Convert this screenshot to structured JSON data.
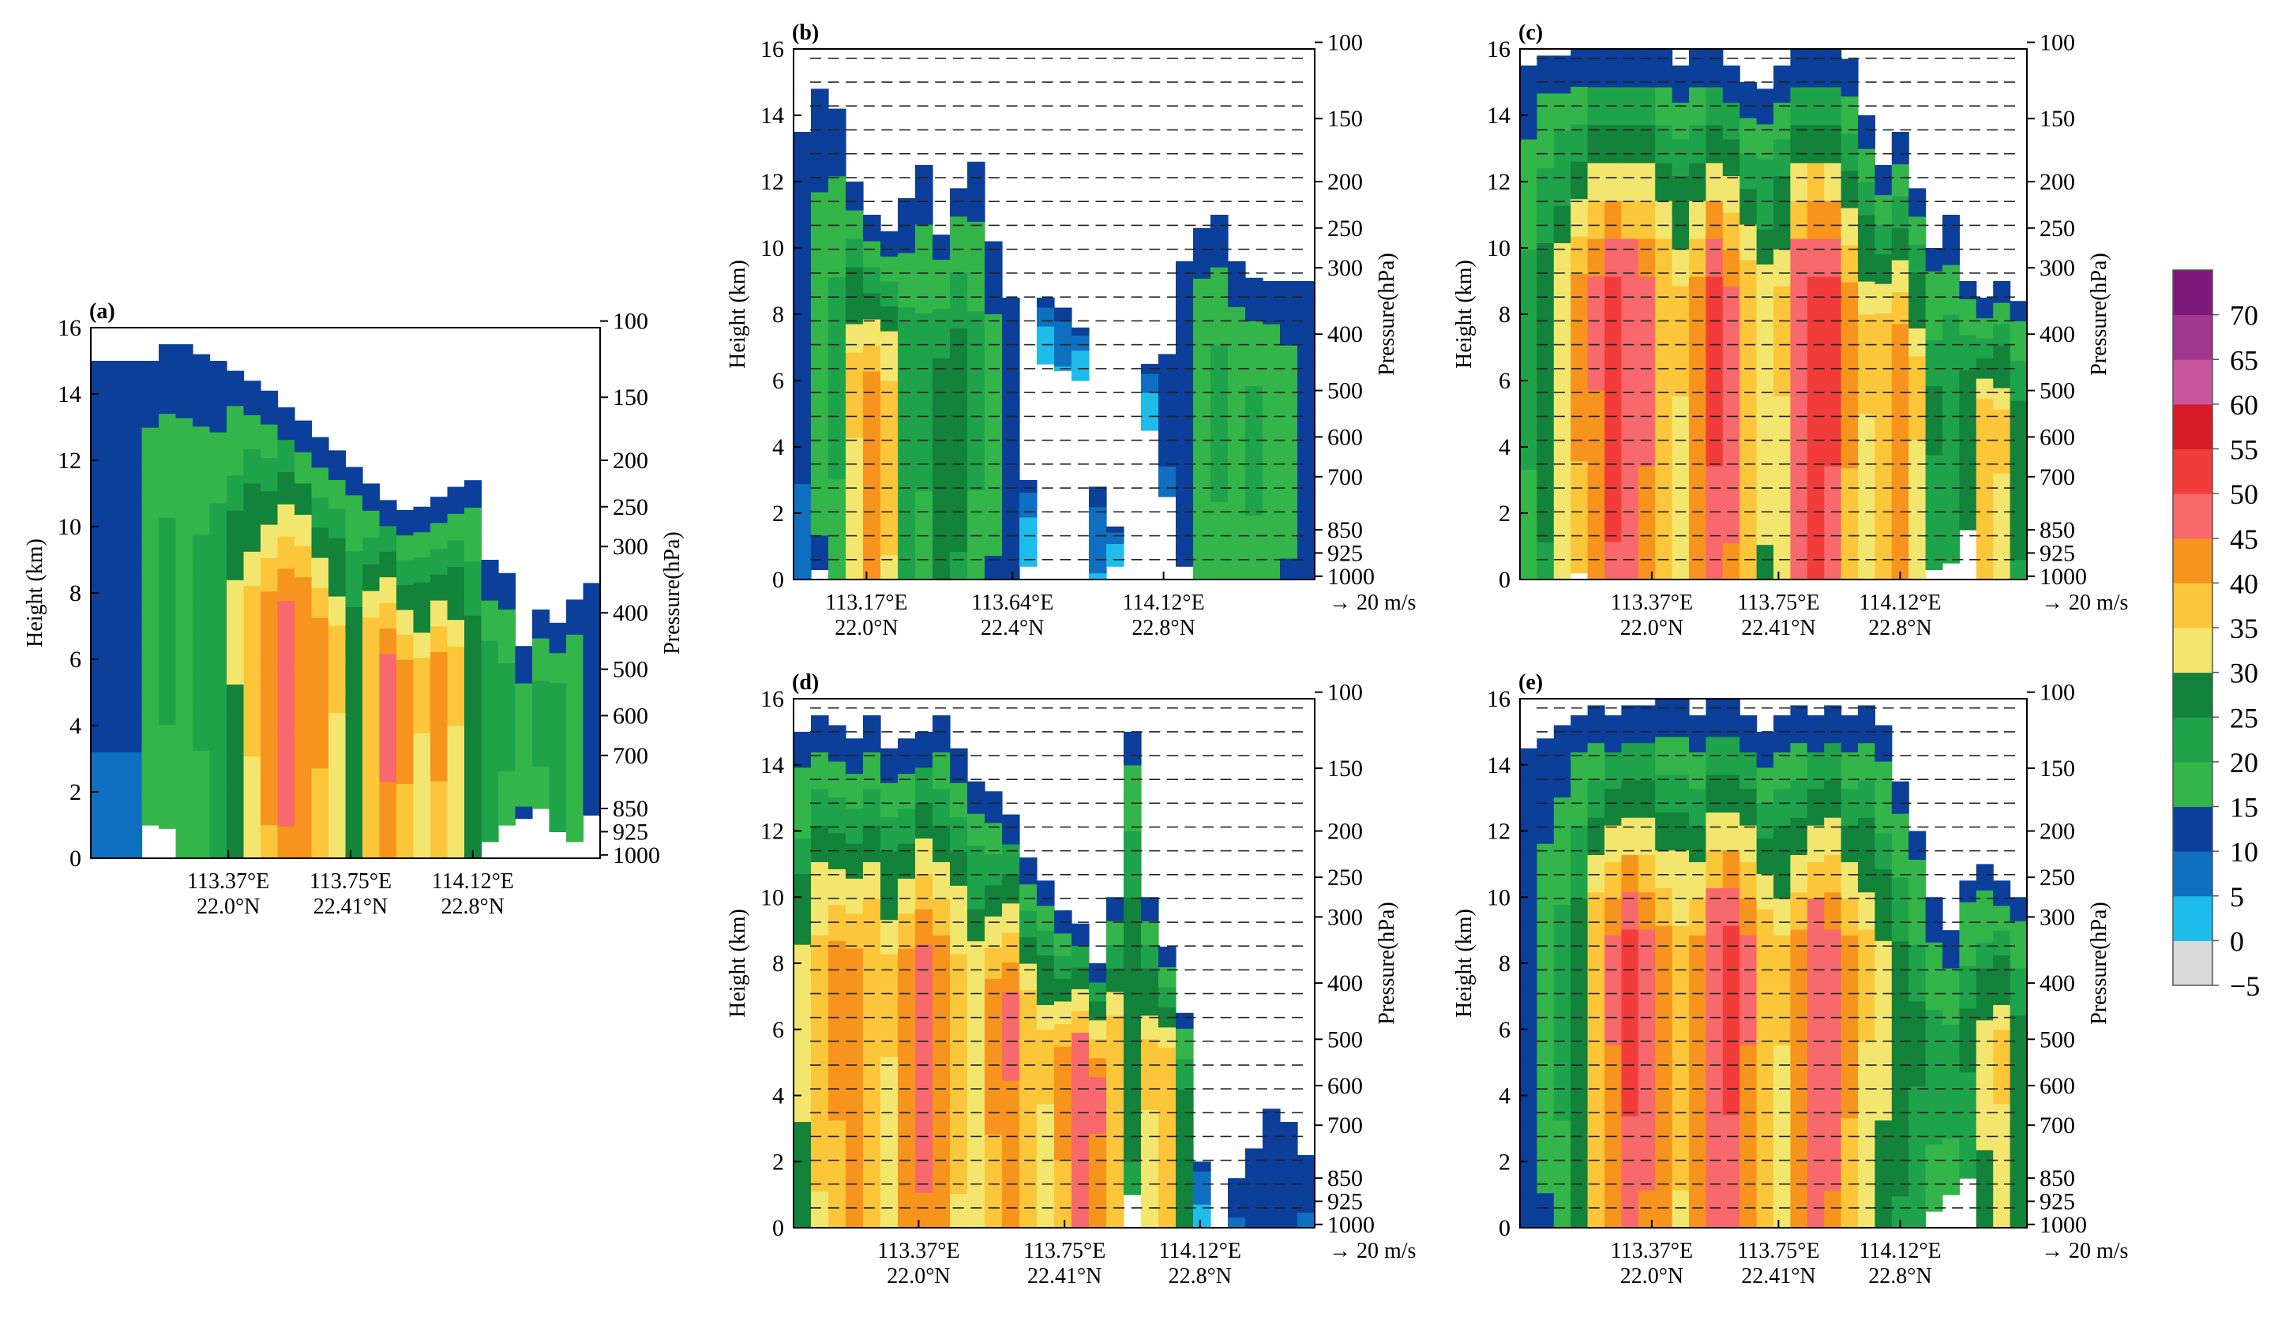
{
  "figure": {
    "description_units": {
      "height_axis": "Height (km)",
      "pressure_axis": "Pressure(hPa)"
    },
    "colorbar": {
      "ticks": [
        "70",
        "65",
        "60",
        "55",
        "50",
        "45",
        "40",
        "35",
        "30",
        "25",
        "20",
        "15",
        "10",
        "5",
        "0",
        "−5"
      ],
      "levels": [
        -5,
        0,
        5,
        10,
        15,
        20,
        25,
        30,
        35,
        40,
        45,
        50,
        55,
        60,
        65,
        70,
        75
      ],
      "colors": [
        "#d9d9d9",
        "#1ebcea",
        "#0f6fc0",
        "#0b3f99",
        "#33b54a",
        "#1fa34a",
        "#13823a",
        "#f3e66e",
        "#fcc63a",
        "#f7941d",
        "#f7696c",
        "#f23c3a",
        "#d71c28",
        "#c9569c",
        "#a1368f",
        "#7d1978"
      ]
    }
  },
  "chart_data": [
    {
      "panel": "(a)",
      "type": "heatmap",
      "variable": "radar reflectivity (dBZ)",
      "ylabel": "Height (km)",
      "y2label": "Pressure(hPa)",
      "ylim": [
        0,
        16
      ],
      "yticks": [
        "0",
        "2",
        "4",
        "6",
        "8",
        "10",
        "12",
        "14",
        "16"
      ],
      "pressure_ticks": [
        {
          "hPa": "100",
          "km": 16.2
        },
        {
          "hPa": "150",
          "km": 13.9
        },
        {
          "hPa": "200",
          "km": 12.0
        },
        {
          "hPa": "250",
          "km": 10.6
        },
        {
          "hPa": "300",
          "km": 9.4
        },
        {
          "hPa": "400",
          "km": 7.4
        },
        {
          "hPa": "500",
          "km": 5.7
        },
        {
          "hPa": "600",
          "km": 4.3
        },
        {
          "hPa": "700",
          "km": 3.1
        },
        {
          "hPa": "850",
          "km": 1.5
        },
        {
          "hPa": "925",
          "km": 0.8
        },
        {
          "hPa": "1000",
          "km": 0.1
        }
      ],
      "xticks": [
        {
          "lon": "113.37°E",
          "lat": "22.0°N"
        },
        {
          "lon": "113.75°E",
          "lat": "22.41°N"
        },
        {
          "lon": "114.12°E",
          "lat": "22.8°N"
        }
      ],
      "wind_vectors": false,
      "reference_vector": "",
      "columns_dbz": [
        [
          0,
          0,
          15,
          12
        ],
        [
          1.1,
          0,
          15,
          12
        ],
        [
          0.9,
          0,
          15,
          12
        ],
        [
          1.2,
          1,
          15,
          20
        ],
        [
          1.5,
          0.9,
          15.5,
          22
        ],
        [
          3,
          0,
          15.5,
          20
        ],
        [
          3,
          0,
          15.2,
          22
        ],
        [
          0,
          0,
          15,
          24
        ],
        [
          0,
          0,
          14.7,
          31
        ],
        [
          0,
          0,
          14.4,
          37
        ],
        [
          0,
          0,
          14.1,
          43
        ],
        [
          0,
          0,
          13.6,
          48
        ],
        [
          0,
          0,
          13.2,
          45
        ],
        [
          0,
          0,
          12.7,
          42
        ],
        [
          0,
          0,
          12.3,
          36
        ],
        [
          0,
          0,
          11.8,
          30
        ],
        [
          0,
          0,
          11.3,
          40
        ],
        [
          0,
          0,
          10.8,
          47
        ],
        [
          0,
          0,
          10.5,
          42
        ],
        [
          0,
          0,
          10.6,
          36
        ],
        [
          0,
          0,
          10.9,
          42
        ],
        [
          0,
          0,
          11.2,
          36
        ],
        [
          0,
          0,
          11.4,
          30
        ],
        [
          0,
          0.5,
          9,
          24
        ],
        [
          0,
          1,
          8.6,
          22
        ],
        [
          0,
          1.2,
          6.4,
          18
        ],
        [
          0,
          1.5,
          7.5,
          22
        ],
        [
          0,
          0.8,
          7.1,
          24
        ],
        [
          0,
          0.5,
          7.8,
          20
        ],
        [
          0,
          1.3,
          8.3,
          15
        ]
      ]
    },
    {
      "panel": "(b)",
      "type": "heatmap",
      "variable": "radar reflectivity (dBZ)",
      "ylabel": "Height (km)",
      "y2label": "Pressure(hPa)",
      "ylim": [
        0,
        16
      ],
      "yticks": [
        "0",
        "2",
        "4",
        "6",
        "8",
        "10",
        "12",
        "14",
        "16"
      ],
      "pressure_ticks": [
        {
          "hPa": "100",
          "km": 16.2
        },
        {
          "hPa": "150",
          "km": 13.9
        },
        {
          "hPa": "200",
          "km": 12.0
        },
        {
          "hPa": "250",
          "km": 10.6
        },
        {
          "hPa": "300",
          "km": 9.4
        },
        {
          "hPa": "400",
          "km": 7.4
        },
        {
          "hPa": "500",
          "km": 5.7
        },
        {
          "hPa": "600",
          "km": 4.3
        },
        {
          "hPa": "700",
          "km": 3.1
        },
        {
          "hPa": "850",
          "km": 1.5
        },
        {
          "hPa": "925",
          "km": 0.8
        },
        {
          "hPa": "1000",
          "km": 0.1
        }
      ],
      "xticks": [
        {
          "lon": "113.17°E",
          "lat": "22.0°N"
        },
        {
          "lon": "113.64°E",
          "lat": "22.4°N"
        },
        {
          "lon": "114.12°E",
          "lat": "22.8°N"
        }
      ],
      "wind_vectors": true,
      "reference_vector": "→ 20 m/s",
      "columns_dbz": [
        [
          0,
          0,
          13.5,
          12
        ],
        [
          0,
          0.3,
          14.8,
          18
        ],
        [
          0,
          0,
          14.2,
          22
        ],
        [
          0,
          0,
          12,
          36
        ],
        [
          0,
          0,
          11,
          44
        ],
        [
          0,
          0,
          10.5,
          38
        ],
        [
          0,
          0,
          11.5,
          24
        ],
        [
          0,
          0,
          12.5,
          22
        ],
        [
          0,
          0,
          10.4,
          30
        ],
        [
          0,
          0,
          11.8,
          28
        ],
        [
          0,
          0,
          12.6,
          22
        ],
        [
          0,
          0,
          10.2,
          18
        ],
        [
          0,
          0,
          8.5,
          15
        ],
        [
          0,
          0.4,
          3,
          5
        ],
        [
          0,
          6.5,
          8.5,
          5
        ],
        [
          0,
          6.3,
          8.2,
          8
        ],
        [
          0,
          6,
          7.6,
          5
        ],
        [
          0,
          0,
          2.8,
          8
        ],
        [
          0,
          0.4,
          1.6,
          5
        ],
        [
          0,
          0,
          0,
          0
        ],
        [
          0,
          4.5,
          6.5,
          5
        ],
        [
          0,
          2.5,
          6.8,
          12
        ],
        [
          0,
          0.4,
          9.6,
          15
        ],
        [
          0,
          0,
          10.6,
          20
        ],
        [
          0,
          0,
          11,
          22
        ],
        [
          0,
          0,
          9.6,
          20
        ],
        [
          0,
          0,
          9.1,
          22
        ],
        [
          0,
          0,
          9,
          20
        ],
        [
          0,
          0,
          9,
          18
        ],
        [
          0,
          0,
          9,
          15
        ]
      ]
    },
    {
      "panel": "(c)",
      "type": "heatmap",
      "variable": "radar reflectivity (dBZ)",
      "ylabel": "Height (km)",
      "y2label": "Pressure(hPa)",
      "ylim": [
        0,
        16
      ],
      "yticks": [
        "0",
        "2",
        "4",
        "6",
        "8",
        "10",
        "12",
        "14",
        "16"
      ],
      "pressure_ticks": [
        {
          "hPa": "100",
          "km": 16.2
        },
        {
          "hPa": "150",
          "km": 13.9
        },
        {
          "hPa": "200",
          "km": 12.0
        },
        {
          "hPa": "250",
          "km": 10.6
        },
        {
          "hPa": "300",
          "km": 9.4
        },
        {
          "hPa": "400",
          "km": 7.4
        },
        {
          "hPa": "500",
          "km": 5.7
        },
        {
          "hPa": "600",
          "km": 4.3
        },
        {
          "hPa": "700",
          "km": 3.1
        },
        {
          "hPa": "850",
          "km": 1.5
        },
        {
          "hPa": "925",
          "km": 0.8
        },
        {
          "hPa": "1000",
          "km": 0.1
        }
      ],
      "xticks": [
        {
          "lon": "113.37°E",
          "lat": "22.0°N"
        },
        {
          "lon": "113.75°E",
          "lat": "22.41°N"
        },
        {
          "lon": "114.12°E",
          "lat": "22.8°N"
        }
      ],
      "wind_vectors": true,
      "reference_vector": "→ 20 m/s",
      "columns_dbz": [
        [
          0,
          0,
          15.5,
          22
        ],
        [
          0,
          0,
          15.8,
          28
        ],
        [
          0,
          0,
          15.8,
          34
        ],
        [
          0,
          0.2,
          16,
          42
        ],
        [
          0,
          0,
          16,
          46
        ],
        [
          0,
          0,
          16,
          53
        ],
        [
          0,
          0,
          16,
          50
        ],
        [
          0,
          0,
          16,
          47
        ],
        [
          0,
          0,
          16,
          40
        ],
        [
          0,
          0,
          15.5,
          36
        ],
        [
          0,
          0,
          16,
          44
        ],
        [
          0,
          0,
          16,
          52
        ],
        [
          0,
          0,
          15.5,
          48
        ],
        [
          0,
          0,
          15,
          40
        ],
        [
          0,
          0,
          14.8,
          33
        ],
        [
          0,
          0,
          15.5,
          36
        ],
        [
          0,
          0,
          16,
          50
        ],
        [
          0,
          0,
          16,
          54
        ],
        [
          0,
          0,
          16,
          52
        ],
        [
          0,
          0,
          15.7,
          42
        ],
        [
          0,
          0,
          14,
          36
        ],
        [
          0,
          0,
          12.5,
          40
        ],
        [
          0,
          0,
          13.5,
          44
        ],
        [
          0,
          0,
          11.8,
          36
        ],
        [
          0,
          0.3,
          10,
          26
        ],
        [
          0,
          0.5,
          11,
          24
        ],
        [
          0,
          1.5,
          9,
          30
        ],
        [
          0,
          0,
          8.5,
          40
        ],
        [
          0,
          0,
          9,
          36
        ],
        [
          0,
          0,
          8.4,
          28
        ]
      ]
    },
    {
      "panel": "(d)",
      "type": "heatmap",
      "variable": "radar reflectivity (dBZ)",
      "ylabel": "Height (km)",
      "y2label": "Pressure(hPa)",
      "ylim": [
        0,
        16
      ],
      "yticks": [
        "0",
        "2",
        "4",
        "6",
        "8",
        "10",
        "12",
        "14",
        "16"
      ],
      "pressure_ticks": [
        {
          "hPa": "100",
          "km": 16.2
        },
        {
          "hPa": "150",
          "km": 13.9
        },
        {
          "hPa": "200",
          "km": 12.0
        },
        {
          "hPa": "250",
          "km": 10.6
        },
        {
          "hPa": "300",
          "km": 9.4
        },
        {
          "hPa": "400",
          "km": 7.4
        },
        {
          "hPa": "500",
          "km": 5.7
        },
        {
          "hPa": "600",
          "km": 4.3
        },
        {
          "hPa": "700",
          "km": 3.1
        },
        {
          "hPa": "850",
          "km": 1.5
        },
        {
          "hPa": "925",
          "km": 0.8
        },
        {
          "hPa": "1000",
          "km": 0.1
        }
      ],
      "xticks": [
        {
          "lon": "113.37°E",
          "lat": "22.0°N"
        },
        {
          "lon": "113.75°E",
          "lat": "22.41°N"
        },
        {
          "lon": "114.12°E",
          "lat": "22.8°N"
        }
      ],
      "wind_vectors": true,
      "reference_vector": "→ 20 m/s",
      "columns_dbz": [
        [
          0,
          0,
          15,
          32
        ],
        [
          0,
          0,
          15.5,
          38
        ],
        [
          0,
          0,
          15.2,
          42
        ],
        [
          0,
          0,
          14.8,
          44
        ],
        [
          0,
          0,
          15.5,
          40
        ],
        [
          0,
          0,
          14.5,
          36
        ],
        [
          0,
          0,
          14.8,
          44
        ],
        [
          0,
          0,
          15,
          48
        ],
        [
          0,
          0,
          15.5,
          44
        ],
        [
          0,
          0,
          14.5,
          38
        ],
        [
          0,
          0,
          13.5,
          34
        ],
        [
          0,
          0,
          13.2,
          42
        ],
        [
          0,
          0,
          12.5,
          46
        ],
        [
          0,
          0,
          11.2,
          40
        ],
        [
          0,
          0,
          10.5,
          36
        ],
        [
          0,
          0,
          9.6,
          42
        ],
        [
          0,
          0,
          9.2,
          50
        ],
        [
          0,
          0,
          8,
          46
        ],
        [
          0,
          0,
          10,
          40
        ],
        [
          0,
          1,
          15,
          28
        ],
        [
          0,
          0,
          10,
          36
        ],
        [
          0,
          0,
          8.5,
          40
        ],
        [
          0,
          0,
          6.5,
          30
        ],
        [
          0,
          0,
          2,
          6
        ],
        [
          0,
          0,
          0,
          0
        ],
        [
          0,
          0,
          1.5,
          12
        ],
        [
          0,
          0,
          2.4,
          15
        ],
        [
          0,
          0,
          3.6,
          15
        ],
        [
          0,
          0,
          3.2,
          14
        ],
        [
          0,
          0,
          2.2,
          12
        ]
      ]
    },
    {
      "panel": "(e)",
      "type": "heatmap",
      "variable": "radar reflectivity (dBZ)",
      "ylabel": "Height (km)",
      "y2label": "Pressure(hPa)",
      "ylim": [
        0,
        16
      ],
      "yticks": [
        "0",
        "2",
        "4",
        "6",
        "8",
        "10",
        "12",
        "14",
        "16"
      ],
      "pressure_ticks": [
        {
          "hPa": "100",
          "km": 16.2
        },
        {
          "hPa": "150",
          "km": 13.9
        },
        {
          "hPa": "200",
          "km": 12.0
        },
        {
          "hPa": "250",
          "km": 10.6
        },
        {
          "hPa": "300",
          "km": 9.4
        },
        {
          "hPa": "400",
          "km": 7.4
        },
        {
          "hPa": "500",
          "km": 5.7
        },
        {
          "hPa": "600",
          "km": 4.3
        },
        {
          "hPa": "700",
          "km": 3.1
        },
        {
          "hPa": "850",
          "km": 1.5
        },
        {
          "hPa": "925",
          "km": 0.8
        },
        {
          "hPa": "1000",
          "km": 0.1
        }
      ],
      "xticks": [
        {
          "lon": "113.37°E",
          "lat": "22.0°N"
        },
        {
          "lon": "113.75°E",
          "lat": "22.41°N"
        },
        {
          "lon": "114.12°E",
          "lat": "22.8°N"
        }
      ],
      "wind_vectors": true,
      "reference_vector": "→ 20 m/s",
      "columns_dbz": [
        [
          0,
          0,
          14.5,
          14
        ],
        [
          0,
          0,
          14.8,
          18
        ],
        [
          0,
          0,
          15.2,
          22
        ],
        [
          0,
          0,
          15.5,
          30
        ],
        [
          0,
          0,
          15.8,
          40
        ],
        [
          0,
          0,
          15.5,
          46
        ],
        [
          0,
          0,
          15.8,
          52
        ],
        [
          0,
          0,
          15.8,
          48
        ],
        [
          0,
          0,
          16,
          44
        ],
        [
          0,
          0,
          16,
          38
        ],
        [
          0,
          0,
          15.5,
          44
        ],
        [
          0,
          0,
          16,
          50
        ],
        [
          0,
          0,
          16,
          52
        ],
        [
          0,
          0,
          15.5,
          46
        ],
        [
          0,
          0,
          15,
          40
        ],
        [
          0,
          0,
          15.5,
          36
        ],
        [
          0,
          0,
          15.8,
          44
        ],
        [
          0,
          0,
          15.5,
          50
        ],
        [
          0,
          0,
          15.8,
          48
        ],
        [
          0,
          0,
          15.5,
          42
        ],
        [
          0,
          0,
          15.8,
          36
        ],
        [
          0,
          0,
          15.2,
          32
        ],
        [
          0,
          0,
          13.5,
          28
        ],
        [
          0,
          0,
          12,
          26
        ],
        [
          0,
          0.5,
          10,
          22
        ],
        [
          0,
          1,
          9,
          22
        ],
        [
          0,
          1.5,
          10.5,
          26
        ],
        [
          0,
          0,
          11,
          32
        ],
        [
          0,
          0,
          10.5,
          36
        ],
        [
          0,
          0,
          10,
          30
        ]
      ]
    }
  ]
}
